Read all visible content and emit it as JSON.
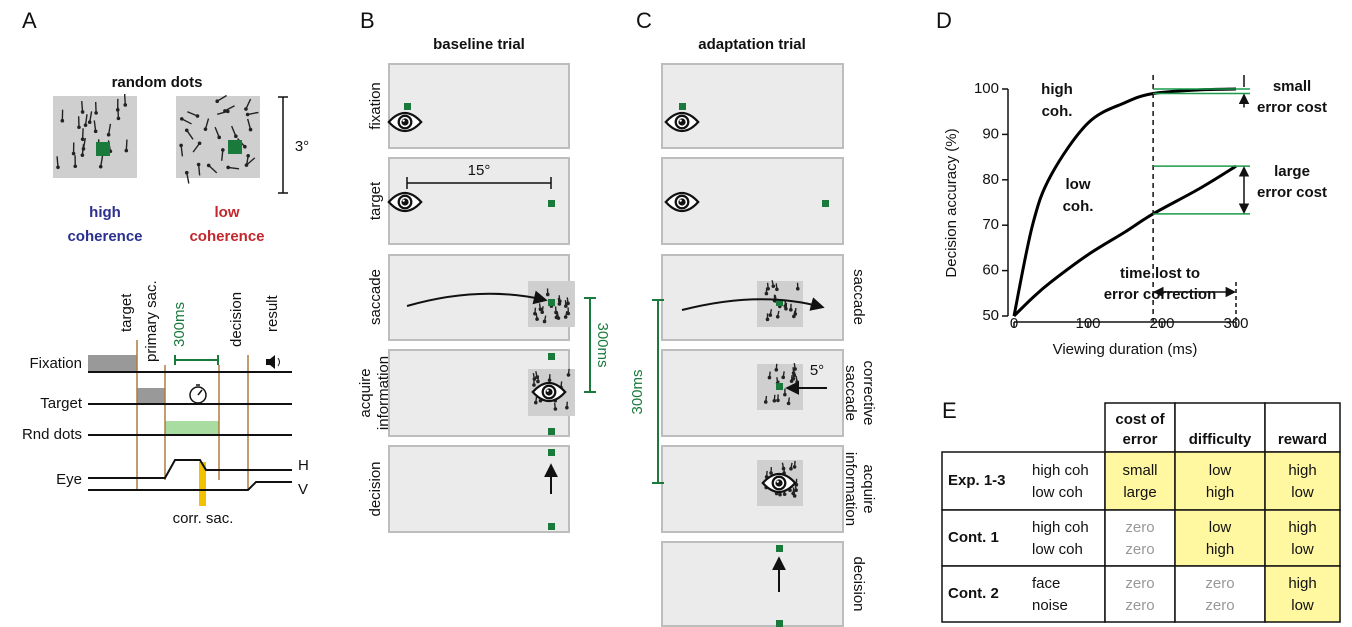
{
  "panel_labels": [
    "A",
    "B",
    "C",
    "D",
    "E"
  ],
  "panel_a": {
    "title": "random dots",
    "size_label": "3°",
    "high_label": [
      "high",
      "coherence"
    ],
    "low_label": [
      "low",
      "coherence"
    ],
    "events": [
      "target",
      "primary sac.",
      "300ms",
      "decision",
      "result"
    ],
    "rows": [
      "Fixation",
      "Target",
      "Rnd dots",
      "Eye"
    ],
    "eye_labels": [
      "H",
      "V"
    ],
    "corr_sac": "corr. sac."
  },
  "panel_b": {
    "title": "baseline trial",
    "rows": [
      [
        "fixation"
      ],
      [
        "target"
      ],
      [
        "saccade"
      ],
      [
        "acquire",
        "information"
      ],
      [
        "decision"
      ]
    ],
    "distance": "15°",
    "duration": "300ms"
  },
  "panel_c": {
    "title": "adaptation trial",
    "rows": [
      [
        "saccade"
      ],
      [
        "corrective",
        "saccade"
      ],
      [
        "acquire",
        "information"
      ],
      [
        "decision"
      ]
    ],
    "error": "5°",
    "duration": "300ms"
  },
  "chart_data": {
    "type": "line",
    "xlabel": "Viewing duration (ms)",
    "ylabel": "Decision accuracy (%)",
    "x": [
      0,
      25,
      50,
      100,
      150,
      188,
      250,
      300
    ],
    "series": [
      {
        "name": "high coh.",
        "color": "#000000",
        "values": [
          50,
          70,
          81,
          92.5,
          97,
          99,
          99.8,
          100
        ]
      },
      {
        "name": "low coh.",
        "color": "#000000",
        "values": [
          50,
          54,
          57.5,
          63.5,
          68.5,
          72.5,
          78,
          83
        ]
      }
    ],
    "xlim": [
      0,
      300
    ],
    "ylim": [
      50,
      100
    ],
    "xticks": [
      0,
      100,
      200,
      300
    ],
    "yticks": [
      50,
      60,
      70,
      80,
      90,
      100
    ],
    "reference_x": 188,
    "annotations": [
      [
        "small",
        "error cost"
      ],
      [
        "large",
        "error cost"
      ],
      [
        "time lost to",
        "error correction"
      ]
    ]
  },
  "table": {
    "header": [
      [
        "cost of",
        "error"
      ],
      [
        "difficulty"
      ],
      [
        "reward"
      ]
    ],
    "rows": [
      {
        "label": "Exp. 1-3",
        "conditions": [
          "high coh",
          "low coh"
        ],
        "cells": [
          [
            "small",
            "large"
          ],
          [
            "low",
            "high"
          ],
          [
            "high",
            "low"
          ]
        ],
        "highlight": [
          true,
          true,
          true
        ]
      },
      {
        "label": "Cont. 1",
        "conditions": [
          "high coh",
          "low coh"
        ],
        "cells": [
          [
            "zero",
            "zero"
          ],
          [
            "low",
            "high"
          ],
          [
            "high",
            "low"
          ]
        ],
        "highlight": [
          false,
          true,
          true
        ]
      },
      {
        "label": "Cont. 2",
        "conditions": [
          "face",
          "noise"
        ],
        "cells": [
          [
            "zero",
            "zero"
          ],
          [
            "zero",
            "zero"
          ],
          [
            "high",
            "low"
          ]
        ],
        "highlight": [
          false,
          false,
          true
        ]
      }
    ]
  }
}
